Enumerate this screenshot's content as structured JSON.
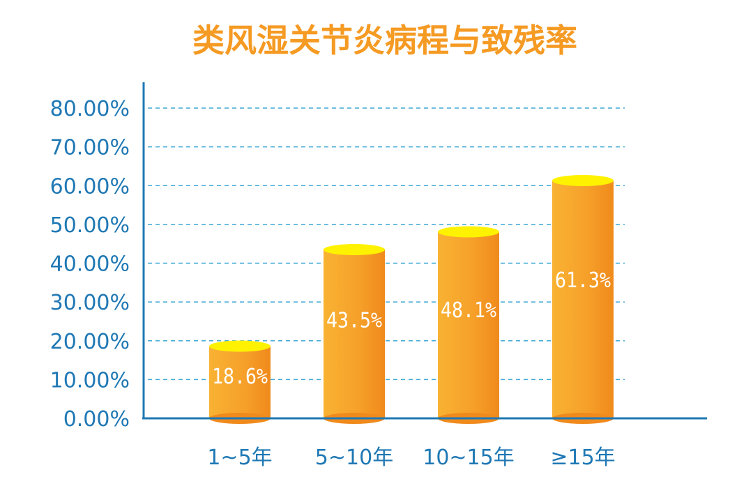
{
  "chart_data": {
    "type": "bar",
    "title": "类风湿关节炎病程与致残率",
    "categories": [
      "1~5年",
      "5~10年",
      "10~15年",
      "≥15年"
    ],
    "values": [
      18.6,
      43.5,
      48.1,
      61.3
    ],
    "data_labels": [
      "18.6%",
      "43.5%",
      "48.1%",
      "61.3%"
    ],
    "yticks": [
      "0.00%",
      "10.00%",
      "20.00%",
      "30.00%",
      "40.00%",
      "50.00%",
      "60.00%",
      "70.00%",
      "80.00%"
    ],
    "ylim": [
      0,
      80
    ],
    "xlabel": "",
    "ylabel": "",
    "grid": true,
    "legend": "none"
  },
  "colors": {
    "title": "#F59A23",
    "axis": "#1F78B4",
    "tick_text": "#1F78B4",
    "category_text": "#1F78B4",
    "grid": "#3FA9D6",
    "bar_body_left": "#F9B233",
    "bar_body_right": "#F08A1C",
    "bar_top": "#FFF200",
    "data_label": "#ffffff"
  }
}
